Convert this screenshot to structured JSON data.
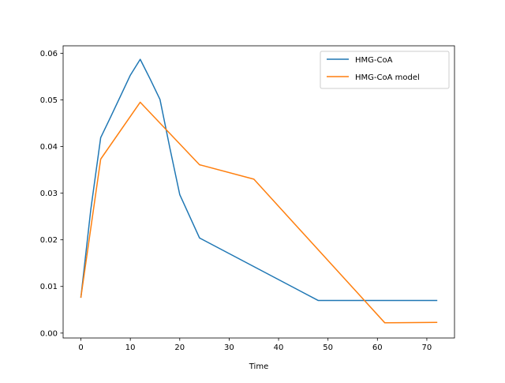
{
  "chart_data": {
    "type": "line",
    "title": "",
    "xlabel": "Time",
    "ylabel": "",
    "xlim": [
      -3.6,
      75.6
    ],
    "ylim": [
      -0.00105,
      0.0616
    ],
    "xticks": [
      0,
      10,
      20,
      30,
      40,
      50,
      60,
      70
    ],
    "yticks": [
      0.0,
      0.01,
      0.02,
      0.03,
      0.04,
      0.05,
      0.06
    ],
    "xtick_labels": [
      "0",
      "10",
      "20",
      "30",
      "40",
      "50",
      "60",
      "70"
    ],
    "ytick_labels": [
      "0.00",
      "0.01",
      "0.02",
      "0.03",
      "0.04",
      "0.05",
      "0.06"
    ],
    "grid": false,
    "legend_position": "top-right",
    "series": [
      {
        "name": "HMG-CoA",
        "color": "#1f77b4",
        "x": [
          0,
          2,
          4,
          6,
          8,
          10,
          12,
          14,
          16,
          18,
          20,
          24,
          48,
          72
        ],
        "y": [
          0.0077,
          0.0265,
          0.0419,
          0.0463,
          0.0508,
          0.0553,
          0.0587,
          0.0545,
          0.0501,
          0.0397,
          0.0297,
          0.0204,
          0.007,
          0.007
        ]
      },
      {
        "name": "HMG-CoA model",
        "color": "#ff7f0e",
        "x": [
          0,
          4,
          12,
          24,
          35,
          61.5,
          72
        ],
        "y": [
          0.0077,
          0.0373,
          0.0495,
          0.0361,
          0.033,
          0.0022,
          0.0023
        ]
      }
    ]
  }
}
